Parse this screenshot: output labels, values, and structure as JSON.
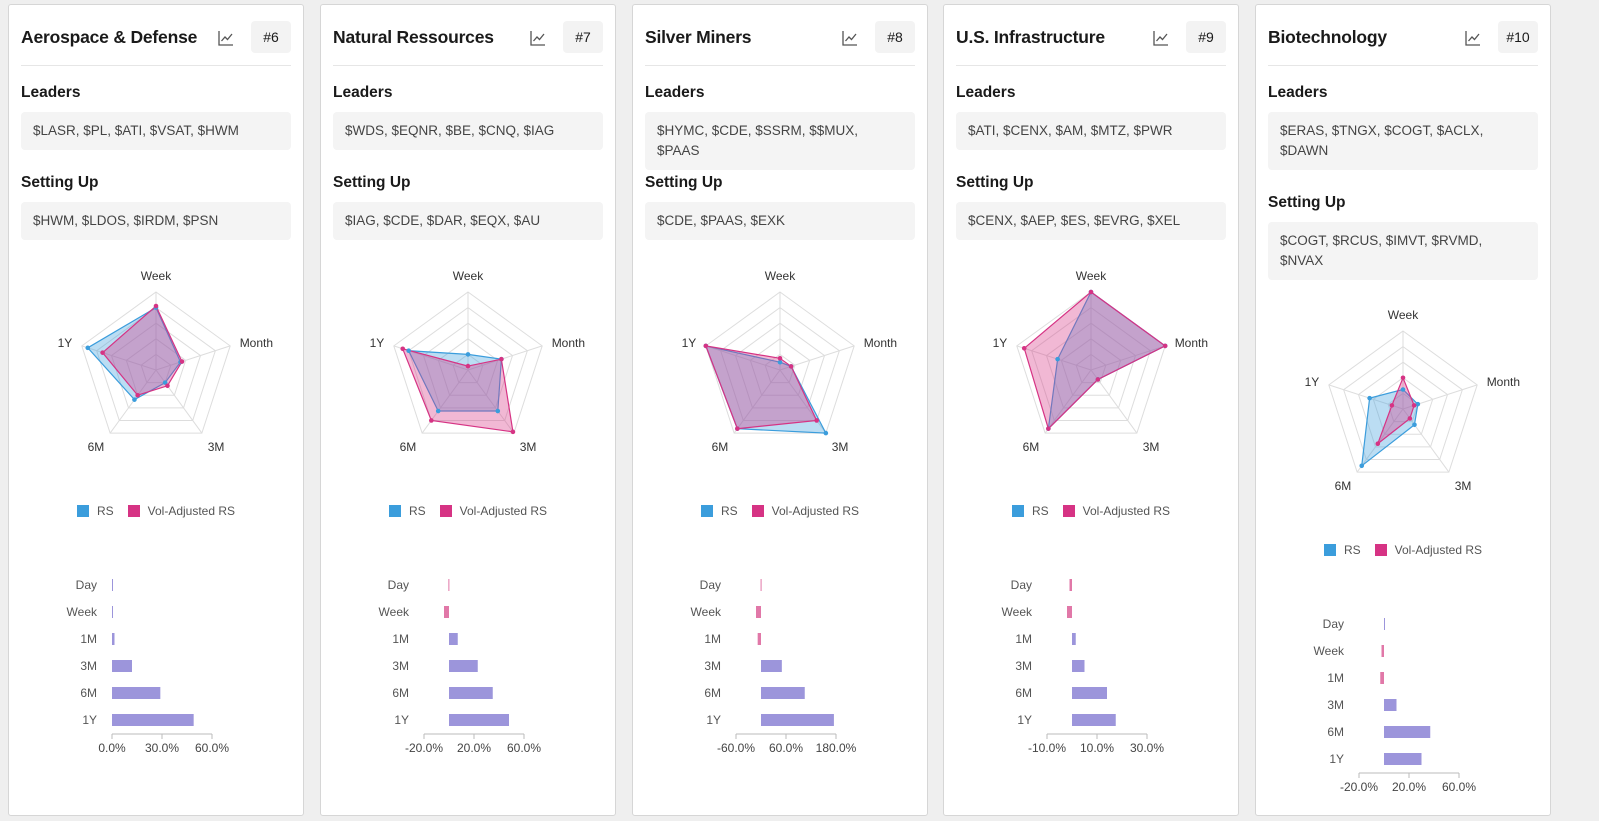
{
  "colors": {
    "rs": "#3b9ddc",
    "vol": "#d63384",
    "overlap": "#9c8fd6",
    "bar": "#9c95db",
    "bar_neg": "#e178a8"
  },
  "legend": {
    "rs": "RS",
    "vol": "Vol-Adjusted RS"
  },
  "sections": {
    "leaders": "Leaders",
    "setting_up": "Setting Up"
  },
  "radar_axes": [
    "Week",
    "Month",
    "3M",
    "6M",
    "1Y"
  ],
  "bar_categories": [
    "Day",
    "Week",
    "1M",
    "3M",
    "6M",
    "1Y"
  ],
  "cards": [
    {
      "title": "Aerospace & Defense",
      "rank": "#6",
      "leaders": "$LASR, $PL, $ATI, $VSAT, $HWM",
      "setting_up": "$HWM, $LDOS, $IRDM, $PSN",
      "chart_data": [
        {
          "type": "radar",
          "axes": [
            "Week",
            "Month",
            "3M",
            "6M",
            "1Y"
          ],
          "series": [
            {
              "name": "RS",
              "values": [
                0.8,
                0.33,
                0.2,
                0.47,
                0.92
              ]
            },
            {
              "name": "Vol-Adjusted RS",
              "values": [
                0.82,
                0.35,
                0.25,
                0.4,
                0.72
              ]
            }
          ]
        },
        {
          "type": "bar",
          "orientation": "horizontal",
          "categories": [
            "Day",
            "Week",
            "1M",
            "3M",
            "6M",
            "1Y"
          ],
          "values": [
            0.3,
            0.6,
            1.5,
            12.0,
            29.0,
            49.0
          ],
          "xticks": [
            "0.0%",
            "30.0%",
            "60.0%"
          ],
          "xlim": [
            0,
            60
          ]
        }
      ]
    },
    {
      "title": "Natural Ressources",
      "rank": "#7",
      "leaders": "$WDS, $EQNR, $BE, $CNQ, $IAG",
      "setting_up": "$IAG, $CDE, $DAR, $EQX, $AU",
      "chart_data": [
        {
          "type": "radar",
          "axes": [
            "Week",
            "Month",
            "3M",
            "6M",
            "1Y"
          ],
          "series": [
            {
              "name": "RS",
              "values": [
                0.2,
                0.45,
                0.65,
                0.65,
                0.8
              ]
            },
            {
              "name": "Vol-Adjusted RS",
              "values": [
                0.05,
                0.45,
                0.98,
                0.8,
                0.88
              ]
            }
          ]
        },
        {
          "type": "bar",
          "orientation": "horizontal",
          "categories": [
            "Day",
            "Week",
            "1M",
            "3M",
            "6M",
            "1Y"
          ],
          "values": [
            -0.5,
            -4.0,
            7.0,
            23.0,
            35.0,
            48.0
          ],
          "xticks": [
            "-20.0%",
            "20.0%",
            "60.0%"
          ],
          "xlim": [
            -20,
            60
          ]
        }
      ]
    },
    {
      "title": "Silver Miners",
      "rank": "#8",
      "leaders": "$HYMC, $CDE, $SSRM, $$MUX, $PAAS",
      "setting_up": "$CDE, $PAAS, $EXK",
      "chart_data": [
        {
          "type": "radar",
          "axes": [
            "Week",
            "Month",
            "3M",
            "6M",
            "1Y"
          ],
          "series": [
            {
              "name": "RS",
              "values": [
                0.1,
                0.15,
                1.0,
                0.93,
                1.0
              ]
            },
            {
              "name": "Vol-Adjusted RS",
              "values": [
                0.15,
                0.15,
                0.8,
                0.93,
                1.0
              ]
            }
          ]
        },
        {
          "type": "bar",
          "orientation": "horizontal",
          "categories": [
            "Day",
            "Week",
            "1M",
            "3M",
            "6M",
            "1Y"
          ],
          "values": [
            -1.0,
            -12.0,
            -8.0,
            50.0,
            105.0,
            175.0
          ],
          "xticks": [
            "-60.0%",
            "60.0%",
            "180.0%"
          ],
          "xlim": [
            -60,
            180
          ]
        }
      ]
    },
    {
      "title": "U.S. Infrastructure",
      "rank": "#9",
      "leaders": "$ATI, $CENX, $AM, $MTZ, $PWR",
      "setting_up": "$CENX, $AEP, $ES, $EVRG, $XEL",
      "chart_data": [
        {
          "type": "radar",
          "axes": [
            "Week",
            "Month",
            "3M",
            "6M",
            "1Y"
          ],
          "series": [
            {
              "name": "RS",
              "values": [
                1.0,
                1.0,
                0.15,
                0.93,
                0.45
              ]
            },
            {
              "name": "Vol-Adjusted RS",
              "values": [
                1.0,
                1.0,
                0.15,
                0.93,
                0.9
              ]
            }
          ]
        },
        {
          "type": "bar",
          "orientation": "horizontal",
          "categories": [
            "Day",
            "Week",
            "1M",
            "3M",
            "6M",
            "1Y"
          ],
          "values": [
            -1.0,
            -2.0,
            1.5,
            5.0,
            14.0,
            17.5
          ],
          "xticks": [
            "-10.0%",
            "10.0%",
            "30.0%"
          ],
          "xlim": [
            -10,
            30
          ]
        }
      ]
    },
    {
      "title": "Biotechnology",
      "rank": "#10",
      "leaders": "$ERAS, $TNGX, $COGT, $ACLX, $DAWN",
      "setting_up": "$COGT, $RCUS, $IMVT, $RVMD, $NVAX",
      "chart_data": [
        {
          "type": "radar",
          "axes": [
            "Week",
            "Month",
            "3M",
            "6M",
            "1Y"
          ],
          "series": [
            {
              "name": "RS",
              "values": [
                0.25,
                0.2,
                0.25,
                0.9,
                0.45
              ]
            },
            {
              "name": "Vol-Adjusted RS",
              "values": [
                0.4,
                0.15,
                0.15,
                0.55,
                0.15
              ]
            }
          ]
        },
        {
          "type": "bar",
          "orientation": "horizontal",
          "categories": [
            "Day",
            "Week",
            "1M",
            "3M",
            "6M",
            "1Y"
          ],
          "values": [
            0.0,
            -2.0,
            -3.0,
            10.0,
            37.0,
            30.0
          ],
          "xticks": [
            "-20.0%",
            "20.0%",
            "60.0%"
          ],
          "xlim": [
            -20,
            60
          ]
        }
      ]
    }
  ]
}
